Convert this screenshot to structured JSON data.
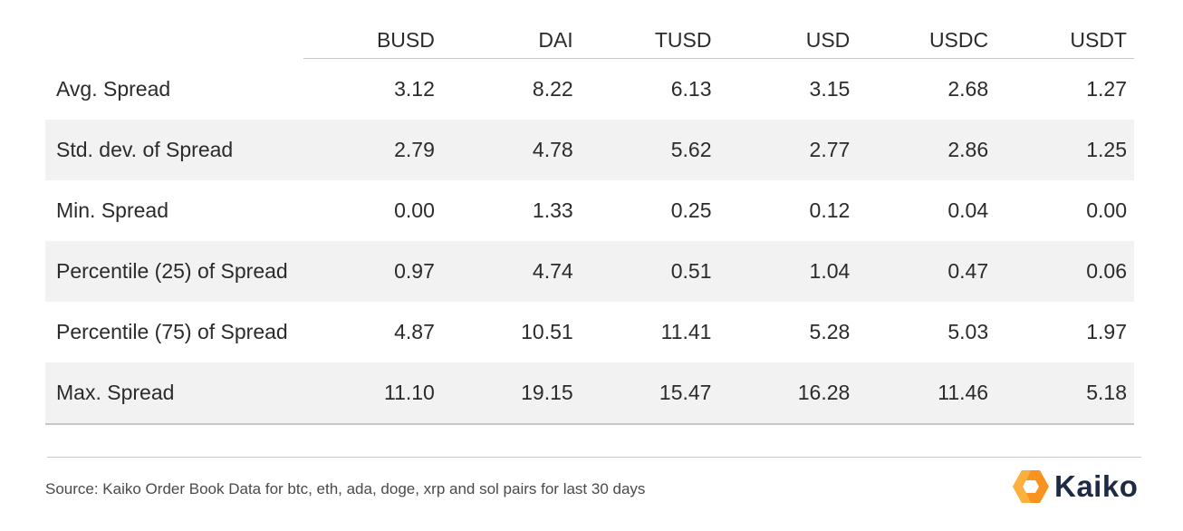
{
  "chart_data": {
    "type": "table",
    "columns": [
      "BUSD",
      "DAI",
      "TUSD",
      "USD",
      "USDC",
      "USDT"
    ],
    "rows": [
      {
        "label": "Avg. Spread",
        "values": [
          "3.12",
          "8.22",
          "6.13",
          "3.15",
          "2.68",
          "1.27"
        ]
      },
      {
        "label": "Std. dev. of Spread",
        "values": [
          "2.79",
          "4.78",
          "5.62",
          "2.77",
          "2.86",
          "1.25"
        ]
      },
      {
        "label": "Min. Spread",
        "values": [
          "0.00",
          "1.33",
          "0.25",
          "0.12",
          "0.04",
          "0.00"
        ]
      },
      {
        "label": "Percentile (25) of Spread",
        "values": [
          "0.97",
          "4.74",
          "0.51",
          "1.04",
          "0.47",
          "0.06"
        ]
      },
      {
        "label": "Percentile (75) of Spread",
        "values": [
          "4.87",
          "10.51",
          "11.41",
          "5.28",
          "5.03",
          "1.97"
        ]
      },
      {
        "label": "Max. Spread",
        "values": [
          "11.10",
          "19.15",
          "15.47",
          "16.28",
          "11.46",
          "5.18"
        ]
      }
    ],
    "shaded_rows": [
      1,
      3,
      5
    ]
  },
  "source": "Source: Kaiko Order Book Data for btc, eth, ada, doge, xrp and sol pairs for last 30 days",
  "logo": {
    "text": "Kaiko",
    "accent_color": "#f7931e",
    "accent_color_light": "#fbb040",
    "text_color": "#1f2a44"
  },
  "colors": {
    "shaded_row": "#f2f2f2",
    "rule": "#c8c8c8"
  }
}
